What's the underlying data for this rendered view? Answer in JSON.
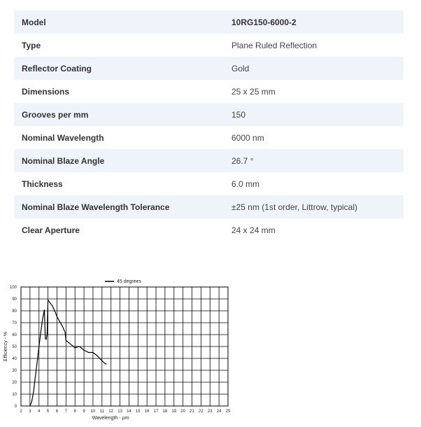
{
  "specs": [
    {
      "label": "Model",
      "value": "10RG150-6000-2"
    },
    {
      "label": "Type",
      "value": "Plane Ruled Reflection"
    },
    {
      "label": "Reflector Coating",
      "value": "Gold"
    },
    {
      "label": "Dimensions",
      "value": "25 x 25 mm"
    },
    {
      "label": "Grooves per mm",
      "value": "150"
    },
    {
      "label": "Nominal Wavelength",
      "value": "6000 nm"
    },
    {
      "label": "Nominal Blaze Angle",
      "value": "26.7 °"
    },
    {
      "label": "Thickness",
      "value": "6.0 mm"
    },
    {
      "label": "Nominal Blaze Wavelength Tolerance",
      "value": "±25 nm (1st order, Littrow, typical)"
    },
    {
      "label": "Clear Aperture",
      "value": "24 x 24 mm"
    }
  ],
  "chart_data": {
    "type": "line",
    "xlabel": "Wavelength - µm",
    "ylabel": "Efficiency - %",
    "xlim": [
      2,
      25
    ],
    "ylim": [
      0,
      100
    ],
    "xticks": [
      2,
      3,
      4,
      5,
      6,
      7,
      8,
      9,
      10,
      11,
      12,
      13,
      14,
      15,
      16,
      17,
      18,
      19,
      20,
      21,
      22,
      23,
      24,
      25
    ],
    "yticks": [
      0,
      10,
      20,
      30,
      40,
      50,
      60,
      70,
      80,
      90,
      100
    ],
    "grid": true,
    "legend_position": "top",
    "series": [
      {
        "name": "45 degrees",
        "color": "#000000",
        "x": [
          3.0,
          3.2,
          3.4,
          3.6,
          3.8,
          4.0,
          4.2,
          4.4,
          4.6,
          4.7,
          4.8,
          4.9,
          5.0,
          5.2,
          5.5,
          5.8,
          6.0,
          6.3,
          6.6,
          6.9,
          7.0,
          7.2,
          7.5,
          8.0,
          8.5,
          9.0,
          9.5,
          10.0,
          10.5,
          11.0,
          11.3,
          11.5
        ],
        "y": [
          0,
          4,
          12,
          25,
          37,
          50,
          62,
          73,
          81,
          57,
          56,
          60,
          89,
          87,
          84,
          79,
          75,
          71,
          67,
          62,
          55,
          54,
          52,
          49,
          50,
          47,
          45,
          45,
          42,
          38,
          36,
          35
        ]
      }
    ]
  }
}
